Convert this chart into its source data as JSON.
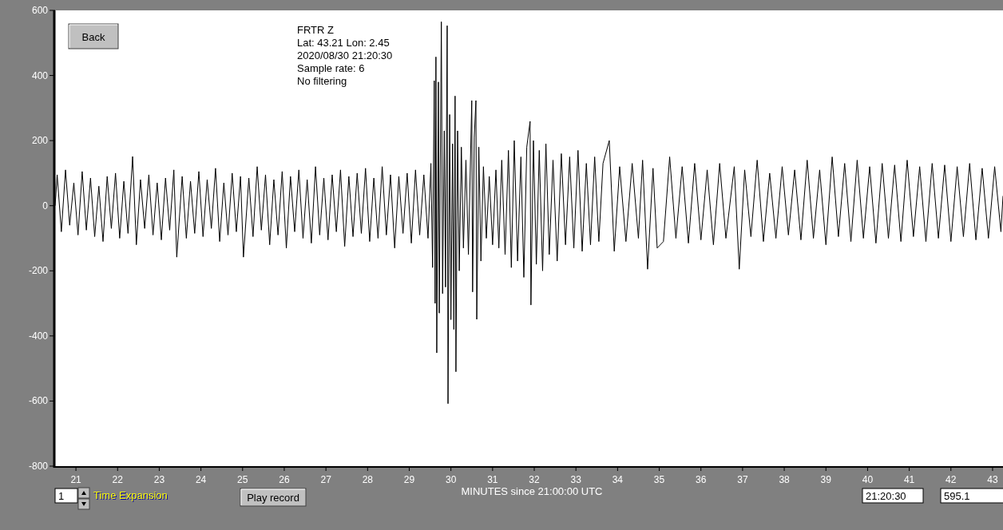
{
  "chart_data": {
    "type": "line",
    "xlabel": "MINUTES since 21:00:00 UTC",
    "xlim": [
      20.5,
      43.25
    ],
    "xticks": [
      21,
      22,
      23,
      24,
      25,
      26,
      27,
      28,
      29,
      30,
      31,
      32,
      33,
      34,
      35,
      36,
      37,
      38,
      39,
      40,
      41,
      42,
      43
    ],
    "ylim": [
      -800,
      600
    ],
    "yticks": [
      -800,
      -600,
      -400,
      -200,
      0,
      200,
      400,
      600
    ],
    "grid": false,
    "marker": "none",
    "line_style": "solid",
    "annotations": [
      "FRTR  Z",
      "Lat: 43.21 Lon: 2.45",
      "2020/08/30 21:20:30",
      "Sample rate: 6",
      "No filtering",
      "Back",
      "1",
      "Time Expansion",
      "Play record",
      "21:20:30",
      "595.1"
    ],
    "series": [
      {
        "color": "#000000",
        "x": [
          20.5,
          20.55,
          20.65,
          20.75,
          20.85,
          20.95,
          21.05,
          21.15,
          21.25,
          21.35,
          21.45,
          21.55,
          21.65,
          21.75,
          21.85,
          21.95,
          22.05,
          22.15,
          22.25,
          22.36,
          22.45,
          22.55,
          22.65,
          22.75,
          22.85,
          22.95,
          23.05,
          23.15,
          23.25,
          23.35,
          23.42,
          23.55,
          23.65,
          23.75,
          23.85,
          23.95,
          24.05,
          24.15,
          24.25,
          24.35,
          24.45,
          24.55,
          24.65,
          24.75,
          24.85,
          24.95,
          25.02,
          25.15,
          25.25,
          25.35,
          25.45,
          25.55,
          25.65,
          25.75,
          25.85,
          25.95,
          26.05,
          26.15,
          26.25,
          26.35,
          26.45,
          26.55,
          26.65,
          26.75,
          26.85,
          26.95,
          27.05,
          27.15,
          27.25,
          27.35,
          27.45,
          27.55,
          27.65,
          27.75,
          27.85,
          27.95,
          28.05,
          28.15,
          28.25,
          28.35,
          28.45,
          28.55,
          28.65,
          28.75,
          28.85,
          28.95,
          29.05,
          29.15,
          29.25,
          29.35,
          29.45,
          29.52,
          29.56,
          29.6,
          29.62,
          29.64,
          29.66,
          29.7,
          29.72,
          29.77,
          29.8,
          29.84,
          29.87,
          29.91,
          29.93,
          29.97,
          30.0,
          30.04,
          30.07,
          30.1,
          30.12,
          30.16,
          30.2,
          30.25,
          30.3,
          30.36,
          30.42,
          30.5,
          30.52,
          30.56,
          30.6,
          30.62,
          30.67,
          30.72,
          30.78,
          30.85,
          30.92,
          31.0,
          31.08,
          31.15,
          31.22,
          31.3,
          31.38,
          31.45,
          31.52,
          31.6,
          31.68,
          31.75,
          31.82,
          31.9,
          31.92,
          31.98,
          32.05,
          32.12,
          32.2,
          32.28,
          32.36,
          32.45,
          32.55,
          32.65,
          32.75,
          32.85,
          32.95,
          33.05,
          33.15,
          33.25,
          33.35,
          33.45,
          33.55,
          33.65,
          33.8,
          33.92,
          34.05,
          34.2,
          34.35,
          34.5,
          34.6,
          34.72,
          34.85,
          34.95,
          35.1,
          35.25,
          35.4,
          35.55,
          35.7,
          35.85,
          36.0,
          36.15,
          36.3,
          36.45,
          36.6,
          36.8,
          36.92,
          37.05,
          37.2,
          37.35,
          37.5,
          37.65,
          37.8,
          37.95,
          38.1,
          38.25,
          38.4,
          38.55,
          38.7,
          38.85,
          39.0,
          39.15,
          39.3,
          39.45,
          39.6,
          39.75,
          39.9,
          40.05,
          40.2,
          40.35,
          40.5,
          40.65,
          40.8,
          40.95,
          41.1,
          41.25,
          41.4,
          41.55,
          41.7,
          41.85,
          42.0,
          42.15,
          42.3,
          42.45,
          42.6,
          42.75,
          42.9,
          43.05,
          43.2,
          43.25
        ],
        "values": [
          0,
          95,
          -80,
          110,
          -60,
          70,
          -90,
          105,
          -75,
          85,
          -95,
          60,
          -110,
          90,
          -70,
          100,
          -100,
          75,
          -85,
          151,
          -120,
          80,
          -70,
          95,
          -90,
          70,
          -105,
          85,
          -75,
          110,
          -158,
          90,
          -100,
          75,
          -85,
          105,
          -95,
          80,
          -70,
          115,
          -110,
          70,
          -90,
          100,
          -80,
          90,
          -158,
          85,
          -95,
          120,
          -75,
          95,
          -120,
          80,
          -90,
          105,
          -130,
          90,
          -80,
          110,
          -100,
          80,
          -115,
          120,
          -90,
          85,
          -105,
          95,
          -80,
          110,
          -125,
          90,
          -95,
          100,
          -85,
          115,
          -110,
          85,
          -100,
          120,
          -90,
          95,
          -130,
          90,
          -85,
          100,
          -115,
          110,
          -90,
          95,
          -100,
          130,
          -190,
          384,
          -300,
          457,
          -452,
          380,
          -330,
          565,
          -270,
          230,
          -250,
          553,
          -608,
          280,
          -350,
          190,
          -380,
          337,
          -510,
          230,
          -200,
          180,
          -130,
          140,
          -150,
          323,
          -265,
          210,
          323,
          -349,
          180,
          -170,
          120,
          -100,
          90,
          -120,
          110,
          -130,
          140,
          -150,
          170,
          -190,
          200,
          -170,
          150,
          -220,
          180,
          259,
          -305,
          200,
          -180,
          170,
          -200,
          190,
          -150,
          140,
          -170,
          160,
          -120,
          150,
          -130,
          170,
          -140,
          130,
          -120,
          150,
          -110,
          130,
          200,
          -140,
          120,
          -110,
          130,
          -100,
          140,
          -195,
          115,
          -130,
          -110,
          150,
          -100,
          120,
          -115,
          130,
          -105,
          110,
          -120,
          130,
          -100,
          120,
          -195,
          110,
          -95,
          140,
          -110,
          100,
          -100,
          120,
          -90,
          110,
          -105,
          140,
          -100,
          110,
          -120,
          150,
          -95,
          130,
          -110,
          140,
          -100,
          120,
          -115,
          130,
          -100,
          125,
          -110,
          140,
          -95,
          120,
          -110,
          130,
          -100,
          125,
          -110,
          120,
          -95,
          130,
          -105,
          115,
          -100,
          120,
          -80,
          30
        ]
      }
    ]
  }
}
